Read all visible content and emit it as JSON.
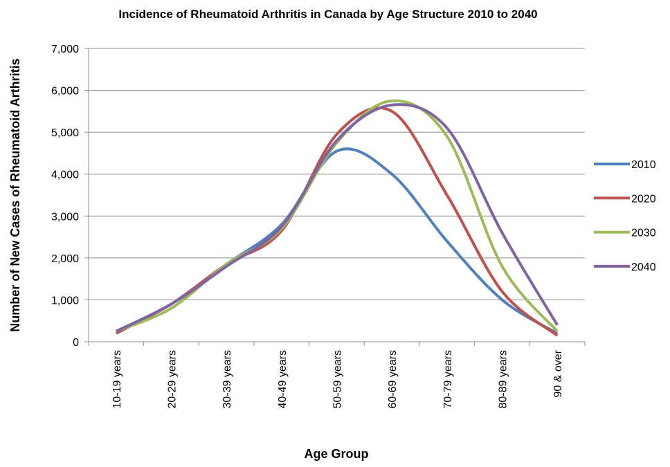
{
  "chart_data": {
    "type": "line",
    "smooth": true,
    "title": "Incidence of Rheumatoid Arthritis in Canada by Age Structure 2010 to 2040",
    "x_label": "Age Group",
    "y_label": "Number of New Cases of Rheumatoid Arthritis",
    "categories": [
      "10-19 years",
      "20-29 years",
      "30-39 years",
      "40-49 years",
      "50-59 years",
      "60-69 years",
      "70-79 years",
      "80-89 years",
      "90 & over"
    ],
    "series": [
      {
        "name": "2010",
        "color": "#4f81bd",
        "values": [
          250,
          900,
          1850,
          2800,
          4550,
          4000,
          2400,
          1000,
          200
        ]
      },
      {
        "name": "2020",
        "color": "#c0504d",
        "values": [
          200,
          900,
          1850,
          2650,
          4950,
          5500,
          3500,
          1200,
          150
        ]
      },
      {
        "name": "2030",
        "color": "#9bbb59",
        "values": [
          250,
          800,
          1850,
          2700,
          4750,
          5750,
          4900,
          1800,
          250
        ]
      },
      {
        "name": "2040",
        "color": "#8064a2",
        "values": [
          250,
          900,
          1800,
          2750,
          4800,
          5650,
          5100,
          2600,
          400
        ]
      }
    ],
    "ylim": [
      0,
      7000
    ],
    "yticks": [
      0,
      {
        "value": 1000,
        "label": "1,000"
      },
      {
        "value": 2000,
        "label": "2,000"
      },
      {
        "value": 3000,
        "label": "3,000"
      },
      {
        "value": 4000,
        "label": "4,000"
      },
      {
        "value": 5000,
        "label": "5,000"
      },
      {
        "value": 6000,
        "label": "6,000"
      },
      {
        "value": 7000,
        "label": "7,000"
      }
    ],
    "grid": true,
    "legend": "right"
  }
}
